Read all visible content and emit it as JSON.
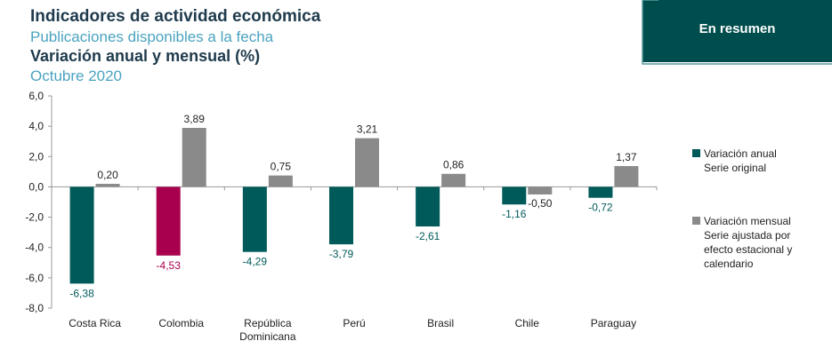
{
  "header": {
    "title": "Indicadores de actividad económica",
    "subtitle": "Publicaciones disponibles a la fecha",
    "measure": "Variación anual y mensual (%)",
    "period": "Octubre 2020"
  },
  "banner": {
    "label": "En resumen"
  },
  "colors": {
    "annual": "#005a5a",
    "monthly": "#8a8a8a",
    "highlight": "#a8004f"
  },
  "chart_data": {
    "type": "bar",
    "title": "Variación anual y mensual (%)",
    "categories": [
      "Costa Rica",
      "Colombia",
      "República Dominicana",
      "Perú",
      "Brasil",
      "Chile",
      "Paraguay"
    ],
    "category_lines": [
      [
        "Costa Rica"
      ],
      [
        "Colombia"
      ],
      [
        "República",
        "Dominicana"
      ],
      [
        "Perú"
      ],
      [
        "Brasil"
      ],
      [
        "Chile"
      ],
      [
        "Paraguay"
      ]
    ],
    "series": [
      {
        "name": "Variación anual Serie original",
        "name_lines": [
          "Variación anual",
          "Serie original"
        ],
        "values": [
          -6.38,
          -4.53,
          -4.29,
          -3.79,
          -2.61,
          -1.16,
          -0.72
        ],
        "labels": [
          "-6,38",
          "-4,53",
          "-4,29",
          "-3,79",
          "-2,61",
          "-1,16",
          "-0,72"
        ]
      },
      {
        "name": "Variación mensual Serie ajustada por efecto estacional y calendario",
        "name_lines": [
          "Variación mensual",
          "Serie ajustada por",
          "efecto estacional y",
          "calendario"
        ],
        "values": [
          0.2,
          3.89,
          0.75,
          3.21,
          0.86,
          -0.5,
          1.37
        ],
        "labels": [
          "0,20",
          "3,89",
          "0,75",
          "3,21",
          "0,86",
          "-0,50",
          "1,37"
        ]
      }
    ],
    "highlight_category": "Colombia",
    "ylim": [
      -8,
      6
    ],
    "yticks": [
      6,
      4,
      2,
      0,
      -2,
      -4,
      -6,
      -8
    ],
    "ytick_labels": [
      "6,0",
      "4,0",
      "2,0",
      "0,0",
      "-2,0",
      "-4,0",
      "-6,0",
      "-8,0"
    ],
    "xlabel": "",
    "ylabel": "",
    "grid": false,
    "legend_position": "right"
  }
}
